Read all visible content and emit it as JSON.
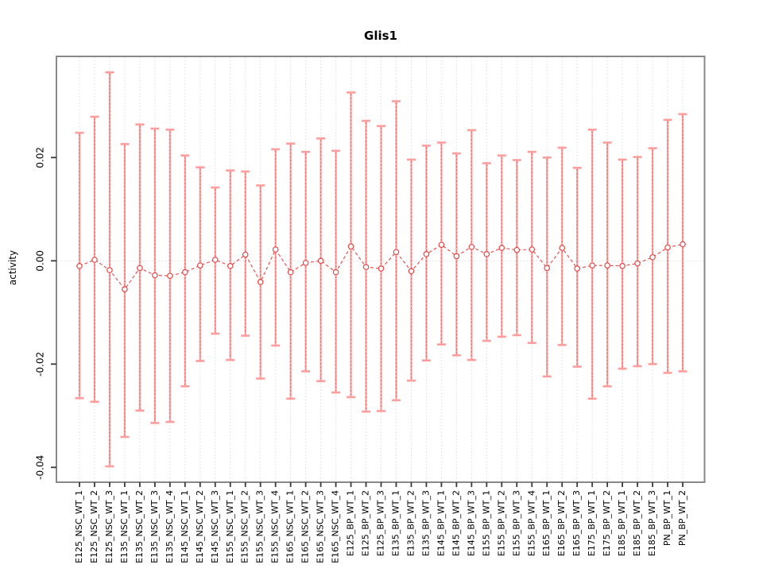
{
  "chart_data": {
    "type": "errorbar",
    "title": "Glis1",
    "ylabel": "activity",
    "xlabel": "",
    "legend": "none",
    "marker": "open-circle",
    "line_style": "dashed",
    "categories": [
      "E125_NSC_WT_1",
      "E125_NSC_WT_2",
      "E125_NSC_WT_3",
      "E135_NSC_WT_1",
      "E135_NSC_WT_2",
      "E135_NSC_WT_3",
      "E135_NSC_WT_4",
      "E145_NSC_WT_1",
      "E145_NSC_WT_2",
      "E145_NSC_WT_3",
      "E155_NSC_WT_1",
      "E155_NSC_WT_2",
      "E155_NSC_WT_3",
      "E155_NSC_WT_4",
      "E165_NSC_WT_1",
      "E165_NSC_WT_2",
      "E165_NSC_WT_3",
      "E165_NSC_WT_4",
      "E125_BP_WT_1",
      "E125_BP_WT_2",
      "E125_BP_WT_3",
      "E135_BP_WT_1",
      "E135_BP_WT_2",
      "E135_BP_WT_3",
      "E145_BP_WT_1",
      "E145_BP_WT_2",
      "E145_BP_WT_3",
      "E155_BP_WT_1",
      "E155_BP_WT_2",
      "E155_BP_WT_3",
      "E155_BP_WT_4",
      "E165_BP_WT_1",
      "E165_BP_WT_2",
      "E165_BP_WT_3",
      "E175_BP_WT_1",
      "E175_BP_WT_2",
      "E185_BP_WT_1",
      "E185_BP_WT_2",
      "E185_BP_WT_3",
      "PN_BP_WT_1",
      "PN_BP_WT_2"
    ],
    "series": [
      {
        "name": "activity",
        "values": [
          -0.001,
          0.0002,
          -0.0018,
          -0.0055,
          -0.0014,
          -0.0028,
          -0.0029,
          -0.0022,
          -0.0009,
          0.0002,
          -0.001,
          0.0012,
          -0.0041,
          0.0022,
          -0.0022,
          -0.0004,
          0.0,
          -0.0022,
          0.0028,
          -0.0012,
          -0.0015,
          0.0017,
          -0.002,
          0.0013,
          0.0031,
          0.0009,
          0.0027,
          0.0013,
          0.0025,
          0.0021,
          0.0022,
          -0.0014,
          0.0025,
          -0.0015,
          -0.0009,
          -0.0009,
          -0.001,
          -0.0005,
          0.0007,
          0.0026,
          0.0032
        ],
        "upper": [
          0.0248,
          0.0279,
          0.0365,
          0.0226,
          0.0264,
          0.0256,
          0.0254,
          0.0204,
          0.0181,
          0.0142,
          0.0175,
          0.0173,
          0.0146,
          0.0216,
          0.0227,
          0.0211,
          0.0237,
          0.0213,
          0.0326,
          0.0271,
          0.0261,
          0.0309,
          0.0196,
          0.0223,
          0.0229,
          0.0208,
          0.0253,
          0.0189,
          0.0204,
          0.0195,
          0.0211,
          0.02,
          0.0219,
          0.018,
          0.0254,
          0.0229,
          0.0196,
          0.0201,
          0.0218,
          0.0273,
          0.0284
        ],
        "lower": [
          -0.0266,
          -0.0273,
          -0.0398,
          -0.0341,
          -0.029,
          -0.0314,
          -0.0312,
          -0.0243,
          -0.0194,
          -0.0141,
          -0.0192,
          -0.0145,
          -0.0228,
          -0.0164,
          -0.0267,
          -0.0214,
          -0.0233,
          -0.0255,
          -0.0264,
          -0.0292,
          -0.0291,
          -0.027,
          -0.0232,
          -0.0193,
          -0.0162,
          -0.0183,
          -0.0192,
          -0.0155,
          -0.0147,
          -0.0144,
          -0.0159,
          -0.0224,
          -0.0163,
          -0.0205,
          -0.0267,
          -0.0243,
          -0.0209,
          -0.0204,
          -0.02,
          -0.0217,
          -0.0214
        ]
      }
    ],
    "yticks": {
      "values": [
        0.02,
        0.0,
        -0.02,
        -0.04
      ],
      "labels": [
        "0.02",
        "0.00",
        "-0.02",
        "-0.04"
      ]
    },
    "ylim": [
      -0.0429,
      0.0396
    ],
    "grid": {
      "vertical_at_categories": true,
      "horizontal_at_zero": true
    },
    "colors": {
      "bar": "#ff9d9d",
      "series": "#e84545",
      "grid": "#dcdcdc",
      "box": "#888888",
      "tick": "#3a3a3a",
      "text": "#000000",
      "background": "#ffffff"
    }
  }
}
